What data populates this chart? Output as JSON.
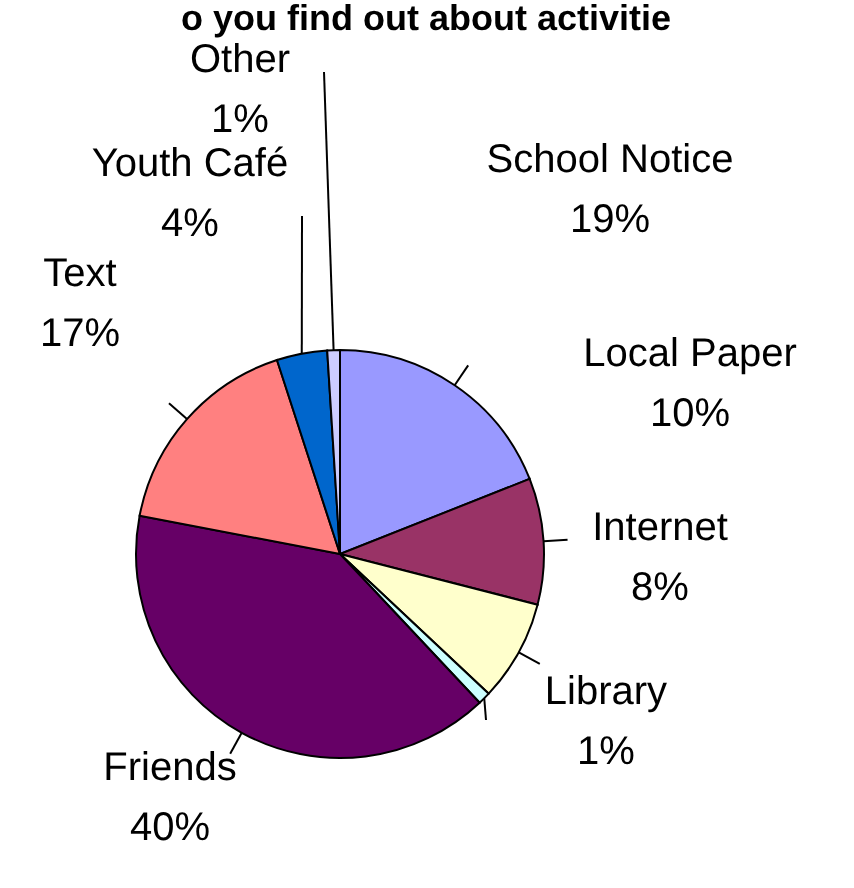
{
  "chart_data": {
    "type": "pie",
    "title": "o you find out about activitie",
    "categories": [
      "School Notice",
      "Local Paper",
      "Internet",
      "Library",
      "Friends",
      "Text",
      "Youth Café",
      "Other"
    ],
    "values": [
      19,
      10,
      8,
      1,
      40,
      17,
      4,
      1
    ],
    "colors": [
      "#9999ff",
      "#993366",
      "#ffffcc",
      "#ccffff",
      "#660066",
      "#ff8080",
      "#0066cc",
      "#ccccff"
    ],
    "value_labels": [
      "19%",
      "10%",
      "8%",
      "1%",
      "40%",
      "17%",
      "4%",
      "1%"
    ]
  }
}
